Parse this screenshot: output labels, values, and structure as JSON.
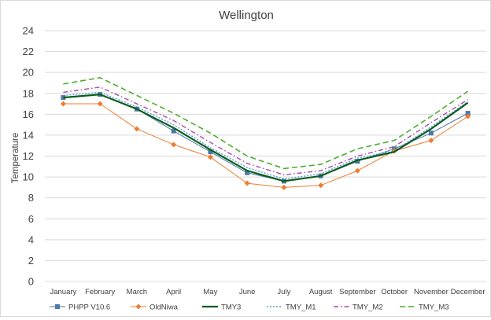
{
  "chart_data": {
    "type": "line",
    "title": "Wellington",
    "xlabel": "",
    "ylabel": "Temperature",
    "ylim": [
      0,
      24
    ],
    "yticks": [
      0,
      2,
      4,
      6,
      8,
      10,
      12,
      14,
      16,
      18,
      20,
      22,
      24
    ],
    "grid": true,
    "legend_position": "bottom",
    "categories": [
      "January",
      "February",
      "March",
      "April",
      "May",
      "June",
      "July",
      "August",
      "September",
      "October",
      "November",
      "December"
    ],
    "series": [
      {
        "name": "PHPP V10.6",
        "color": "#4e79a7",
        "style": "solid-thin",
        "marker": "square",
        "values": [
          17.6,
          17.9,
          16.5,
          14.4,
          12.4,
          10.4,
          9.6,
          10.1,
          11.5,
          12.7,
          14.2,
          16.1
        ]
      },
      {
        "name": "OldNiwa",
        "color": "#ed7d31",
        "style": "solid-thin",
        "marker": "diamond",
        "values": [
          17.0,
          17.0,
          14.6,
          13.1,
          11.9,
          9.4,
          9.0,
          9.2,
          10.6,
          12.5,
          13.5,
          15.8
        ]
      },
      {
        "name": "TMY3",
        "color": "#0b5d1e",
        "style": "solid-thick",
        "marker": "none",
        "values": [
          17.6,
          17.9,
          16.5,
          14.7,
          12.6,
          10.6,
          9.6,
          10.1,
          11.6,
          12.4,
          14.6,
          17.1
        ]
      },
      {
        "name": "TMY_M1",
        "color": "#5b9bd5",
        "style": "dotted",
        "marker": "none",
        "values": [
          17.8,
          18.1,
          16.7,
          15.0,
          12.8,
          10.9,
          9.8,
          10.3,
          11.8,
          12.5,
          14.8,
          17.2
        ]
      },
      {
        "name": "TMY_M2",
        "color": "#a64ca6",
        "style": "dashdot",
        "marker": "none",
        "values": [
          18.1,
          18.6,
          17.0,
          15.4,
          13.3,
          11.3,
          10.2,
          10.6,
          12.0,
          12.9,
          15.2,
          17.4
        ]
      },
      {
        "name": "TMY_M3",
        "color": "#4ead31",
        "style": "dashed",
        "marker": "none",
        "values": [
          18.9,
          19.5,
          17.8,
          16.1,
          14.2,
          12.0,
          10.8,
          11.2,
          12.7,
          13.5,
          15.8,
          18.2
        ]
      }
    ]
  }
}
